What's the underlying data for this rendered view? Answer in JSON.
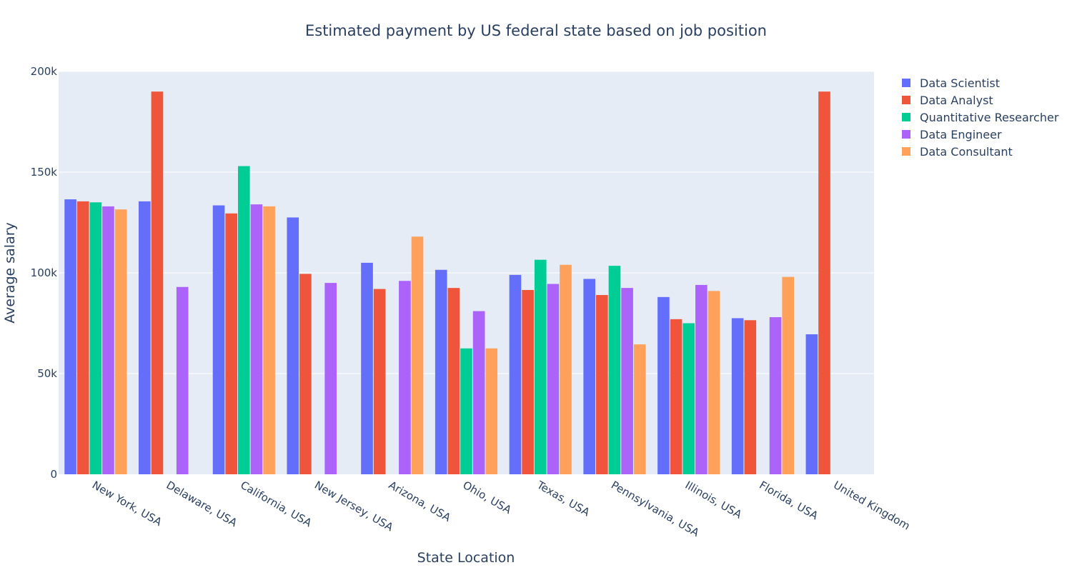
{
  "chart_data": {
    "type": "bar",
    "title": "Estimated payment by US federal state based on job position",
    "xlabel": "State Location",
    "ylabel": "Average salary",
    "ylim": [
      0,
      200000
    ],
    "yticks": [
      0,
      50000,
      100000,
      150000,
      200000
    ],
    "ytick_labels": [
      "0",
      "50k",
      "100k",
      "150k",
      "200k"
    ],
    "grid": true,
    "legend_position": "top-right",
    "colors": {
      "plot_background": "#e5ecf6",
      "grid": "#ffffff",
      "text": "#2a3f5f"
    },
    "categories": [
      "New York, USA",
      "Delaware, USA",
      "California, USA",
      "New Jersey, USA",
      "Arizona, USA",
      "Ohio, USA",
      "Texas, USA",
      "Pennsylvania, USA",
      "Illinois, USA",
      "Florida, USA",
      "United Kingdom"
    ],
    "series": [
      {
        "name": "Data Scientist",
        "color": "#636efa",
        "values": [
          136500,
          135500,
          133500,
          127500,
          105000,
          101500,
          99000,
          97000,
          88000,
          77500,
          69500
        ]
      },
      {
        "name": "Data Analyst",
        "color": "#ef553b",
        "values": [
          135500,
          190000,
          129500,
          99500,
          92000,
          92500,
          91500,
          89000,
          77000,
          76500,
          190000
        ]
      },
      {
        "name": "Quantitative Researcher",
        "color": "#00cc96",
        "values": [
          135000,
          null,
          153000,
          null,
          null,
          62500,
          106500,
          103500,
          75000,
          null,
          null
        ]
      },
      {
        "name": "Data Engineer",
        "color": "#ab63fa",
        "values": [
          133000,
          93000,
          134000,
          95000,
          96000,
          81000,
          94500,
          92500,
          94000,
          78000,
          null
        ]
      },
      {
        "name": "Data Consultant",
        "color": "#ffa15a",
        "values": [
          131500,
          null,
          133000,
          null,
          118000,
          62500,
          104000,
          64500,
          91000,
          98000,
          null
        ]
      }
    ]
  }
}
